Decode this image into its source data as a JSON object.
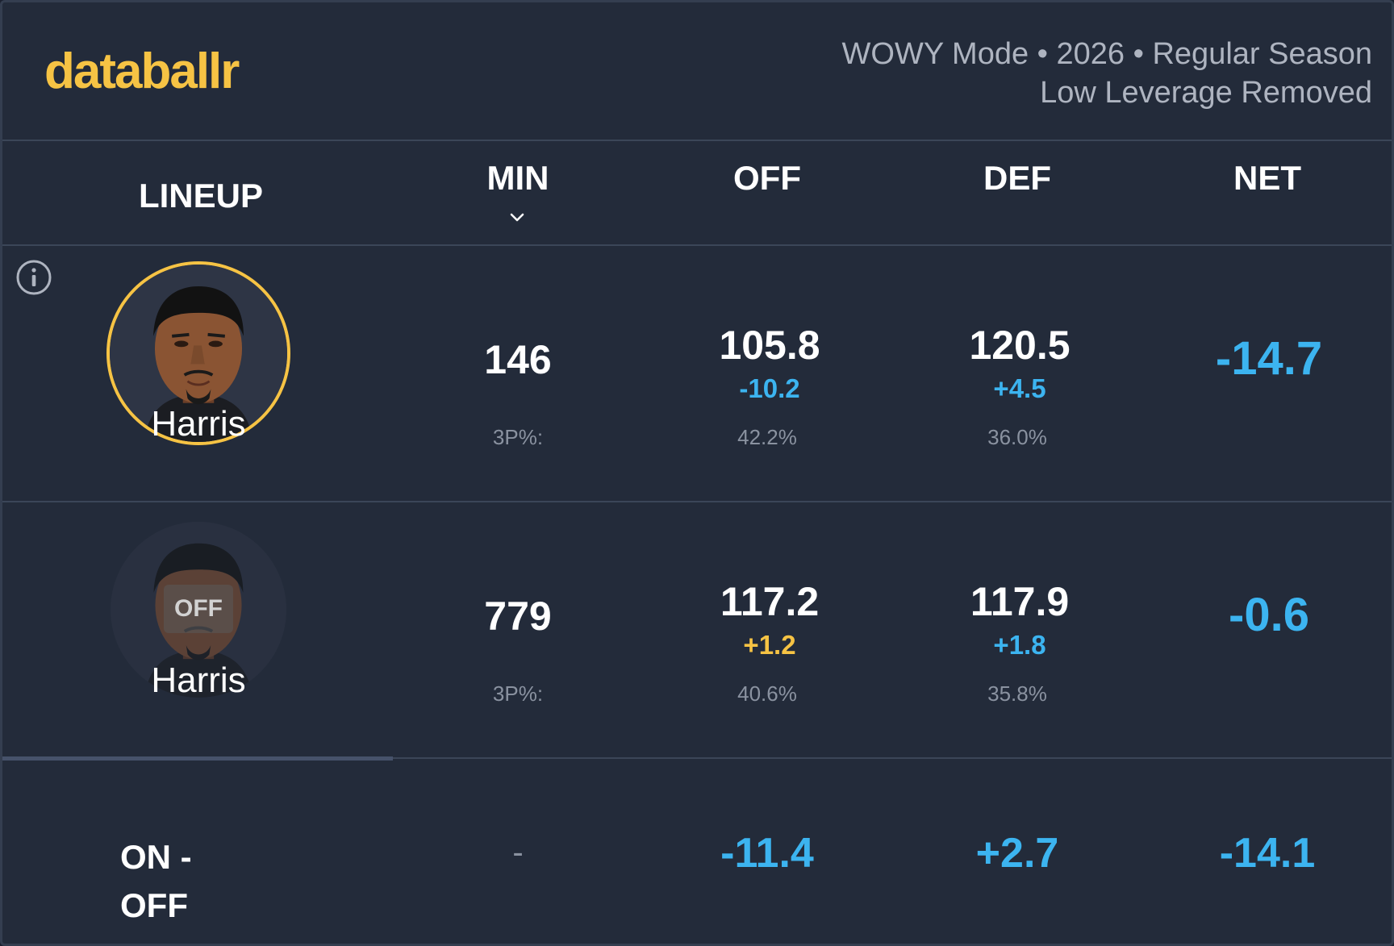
{
  "brand": {
    "name": "databallr",
    "color": "#f6c344"
  },
  "header": {
    "line1": "WOWY Mode • 2026 • Regular Season",
    "line2": "Low Leverage Removed"
  },
  "columns": {
    "lineup": "LINEUP",
    "min": "MIN",
    "off": "OFF",
    "def": "DEF",
    "net": "NET",
    "sort_icon": "chevron-down-icon"
  },
  "rows": [
    {
      "state": "on",
      "player": "Harris",
      "min": "146",
      "off": "105.8",
      "off_diff": "-10.2",
      "def": "120.5",
      "def_diff": "+4.5",
      "net": "-14.7",
      "three_label": "3P%:",
      "off_3p": "42.2%",
      "def_3p": "36.0%"
    },
    {
      "state": "off",
      "badge": "OFF",
      "player": "Harris",
      "min": "779",
      "off": "117.2",
      "off_diff": "+1.2",
      "def": "117.9",
      "def_diff": "+1.8",
      "net": "-0.6",
      "three_label": "3P%:",
      "off_3p": "40.6%",
      "def_3p": "35.8%"
    }
  ],
  "on_off": {
    "label_line1": "ON -",
    "label_line2": "OFF",
    "min": "-",
    "off": "-11.4",
    "def": "+2.7",
    "net": "-14.1"
  },
  "colors": {
    "positive_blue": "#3cb4f0",
    "gold": "#f6c344",
    "background": "#232b3a"
  }
}
